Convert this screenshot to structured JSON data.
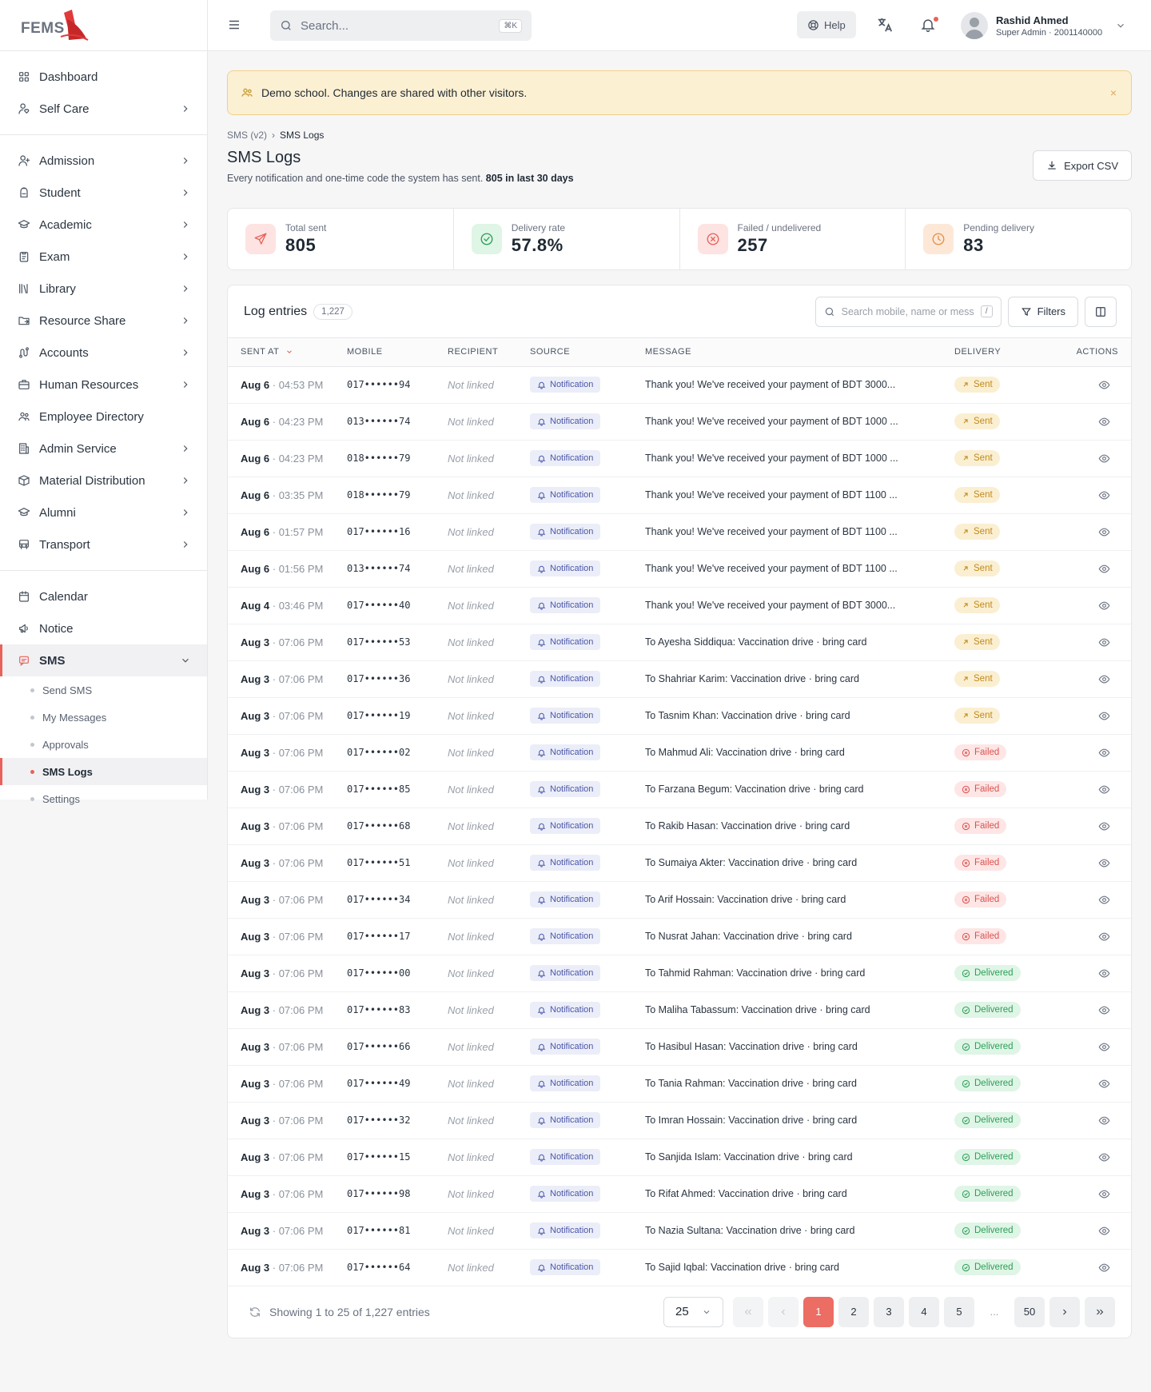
{
  "brand": {
    "logo_text": "FEMS"
  },
  "sidebar": {
    "group1": [
      {
        "label": "Dashboard",
        "icon": "grid-icon",
        "chevron": false
      },
      {
        "label": "Self Care",
        "icon": "user-heart-icon",
        "chevron": true
      }
    ],
    "group2": [
      {
        "label": "Admission",
        "icon": "user-plus-icon",
        "chevron": true
      },
      {
        "label": "Student",
        "icon": "backpack-icon",
        "chevron": true
      },
      {
        "label": "Academic",
        "icon": "graduation-cap-icon",
        "chevron": true
      },
      {
        "label": "Exam",
        "icon": "clipboard-icon",
        "chevron": true
      },
      {
        "label": "Library",
        "icon": "library-icon",
        "chevron": true
      },
      {
        "label": "Resource Share",
        "icon": "folder-share-icon",
        "chevron": true
      },
      {
        "label": "Accounts",
        "icon": "route-icon",
        "chevron": true
      },
      {
        "label": "Human Resources",
        "icon": "briefcase-icon",
        "chevron": true
      },
      {
        "label": "Employee Directory",
        "icon": "users-icon",
        "chevron": false
      },
      {
        "label": "Admin Service",
        "icon": "building-icon",
        "chevron": true
      },
      {
        "label": "Material Distribution",
        "icon": "box-icon",
        "chevron": true
      },
      {
        "label": "Alumni",
        "icon": "graduation-cap-icon",
        "chevron": true
      },
      {
        "label": "Transport",
        "icon": "bus-icon",
        "chevron": true
      }
    ],
    "group3": [
      {
        "label": "Calendar",
        "icon": "calendar-icon"
      },
      {
        "label": "Notice",
        "icon": "megaphone-icon"
      },
      {
        "label": "SMS",
        "icon": "message-icon"
      }
    ],
    "sms_sub": [
      {
        "label": "Send SMS"
      },
      {
        "label": "My Messages"
      },
      {
        "label": "Approvals"
      },
      {
        "label": "SMS Logs"
      },
      {
        "label": "Settings"
      }
    ]
  },
  "topbar": {
    "search_placeholder": "Search...",
    "search_kbd": "⌘K",
    "help_label": "Help",
    "user_name": "Rashid Ahmed",
    "user_role": "Super Admin · 2001140000"
  },
  "banner": {
    "text": "Demo school. Changes are shared with other visitors.",
    "close": "×"
  },
  "breadcrumb": {
    "parent": "SMS (v2)",
    "sep": "›",
    "current": "SMS Logs"
  },
  "page": {
    "title": "SMS Logs",
    "subtitle": "Every notification and one-time code the system has sent.",
    "subtitle_strong": "805 in last 30 days",
    "export_label": "Export CSV"
  },
  "stats": [
    {
      "label": "Total sent",
      "value": "805",
      "icon": "send-icon",
      "bg": "#fde3e1",
      "fg": "#e8625b"
    },
    {
      "label": "Delivery rate",
      "value": "57.8%",
      "icon": "check-circle-icon",
      "bg": "#dff5e6",
      "fg": "#2e9e58"
    },
    {
      "label": "Failed / undelivered",
      "value": "257",
      "icon": "x-circle-icon",
      "bg": "#fde3e1",
      "fg": "#e8625b"
    },
    {
      "label": "Pending delivery",
      "value": "83",
      "icon": "clock-icon",
      "bg": "#fde8d8",
      "fg": "#e3914a"
    }
  ],
  "log": {
    "title": "Log entries",
    "count": "1,227",
    "search_placeholder": "Search mobile, name or message",
    "search_kbd": "/",
    "filters_label": "Filters",
    "columns": [
      "SENT AT",
      "MOBILE",
      "RECIPIENT",
      "SOURCE",
      "MESSAGE",
      "DELIVERY",
      "ACTIONS"
    ],
    "rows": [
      {
        "date": "Aug 6",
        "time": "04:53 PM",
        "mobile": "017••••••94",
        "recipient": "Not linked",
        "source": "Notification",
        "message": "Thank you! We've received your payment of BDT 3000...",
        "status": "Sent"
      },
      {
        "date": "Aug 6",
        "time": "04:23 PM",
        "mobile": "013••••••74",
        "recipient": "Not linked",
        "source": "Notification",
        "message": "Thank you! We've received your payment of BDT 1000 ...",
        "status": "Sent"
      },
      {
        "date": "Aug 6",
        "time": "04:23 PM",
        "mobile": "018••••••79",
        "recipient": "Not linked",
        "source": "Notification",
        "message": "Thank you! We've received your payment of BDT 1000 ...",
        "status": "Sent"
      },
      {
        "date": "Aug 6",
        "time": "03:35 PM",
        "mobile": "018••••••79",
        "recipient": "Not linked",
        "source": "Notification",
        "message": "Thank you! We've received your payment of BDT 1100 ...",
        "status": "Sent"
      },
      {
        "date": "Aug 6",
        "time": "01:57 PM",
        "mobile": "017••••••16",
        "recipient": "Not linked",
        "source": "Notification",
        "message": "Thank you! We've received your payment of BDT 1100 ...",
        "status": "Sent"
      },
      {
        "date": "Aug 6",
        "time": "01:56 PM",
        "mobile": "013••••••74",
        "recipient": "Not linked",
        "source": "Notification",
        "message": "Thank you! We've received your payment of BDT 1100 ...",
        "status": "Sent"
      },
      {
        "date": "Aug 4",
        "time": "03:46 PM",
        "mobile": "017••••••40",
        "recipient": "Not linked",
        "source": "Notification",
        "message": "Thank you! We've received your payment of BDT 3000...",
        "status": "Sent"
      },
      {
        "date": "Aug 3",
        "time": "07:06 PM",
        "mobile": "017••••••53",
        "recipient": "Not linked",
        "source": "Notification",
        "message": "To Ayesha Siddiqua: Vaccination drive · bring card",
        "status": "Sent"
      },
      {
        "date": "Aug 3",
        "time": "07:06 PM",
        "mobile": "017••••••36",
        "recipient": "Not linked",
        "source": "Notification",
        "message": "To Shahriar Karim: Vaccination drive · bring card",
        "status": "Sent"
      },
      {
        "date": "Aug 3",
        "time": "07:06 PM",
        "mobile": "017••••••19",
        "recipient": "Not linked",
        "source": "Notification",
        "message": "To Tasnim Khan: Vaccination drive · bring card",
        "status": "Sent"
      },
      {
        "date": "Aug 3",
        "time": "07:06 PM",
        "mobile": "017••••••02",
        "recipient": "Not linked",
        "source": "Notification",
        "message": "To Mahmud Ali: Vaccination drive · bring card",
        "status": "Failed"
      },
      {
        "date": "Aug 3",
        "time": "07:06 PM",
        "mobile": "017••••••85",
        "recipient": "Not linked",
        "source": "Notification",
        "message": "To Farzana Begum: Vaccination drive · bring card",
        "status": "Failed"
      },
      {
        "date": "Aug 3",
        "time": "07:06 PM",
        "mobile": "017••••••68",
        "recipient": "Not linked",
        "source": "Notification",
        "message": "To Rakib Hasan: Vaccination drive · bring card",
        "status": "Failed"
      },
      {
        "date": "Aug 3",
        "time": "07:06 PM",
        "mobile": "017••••••51",
        "recipient": "Not linked",
        "source": "Notification",
        "message": "To Sumaiya Akter: Vaccination drive · bring card",
        "status": "Failed"
      },
      {
        "date": "Aug 3",
        "time": "07:06 PM",
        "mobile": "017••••••34",
        "recipient": "Not linked",
        "source": "Notification",
        "message": "To Arif Hossain: Vaccination drive · bring card",
        "status": "Failed"
      },
      {
        "date": "Aug 3",
        "time": "07:06 PM",
        "mobile": "017••••••17",
        "recipient": "Not linked",
        "source": "Notification",
        "message": "To Nusrat Jahan: Vaccination drive · bring card",
        "status": "Failed"
      },
      {
        "date": "Aug 3",
        "time": "07:06 PM",
        "mobile": "017••••••00",
        "recipient": "Not linked",
        "source": "Notification",
        "message": "To Tahmid Rahman: Vaccination drive · bring card",
        "status": "Delivered"
      },
      {
        "date": "Aug 3",
        "time": "07:06 PM",
        "mobile": "017••••••83",
        "recipient": "Not linked",
        "source": "Notification",
        "message": "To Maliha Tabassum: Vaccination drive · bring card",
        "status": "Delivered"
      },
      {
        "date": "Aug 3",
        "time": "07:06 PM",
        "mobile": "017••••••66",
        "recipient": "Not linked",
        "source": "Notification",
        "message": "To Hasibul Hasan: Vaccination drive · bring card",
        "status": "Delivered"
      },
      {
        "date": "Aug 3",
        "time": "07:06 PM",
        "mobile": "017••••••49",
        "recipient": "Not linked",
        "source": "Notification",
        "message": "To Tania Rahman: Vaccination drive · bring card",
        "status": "Delivered"
      },
      {
        "date": "Aug 3",
        "time": "07:06 PM",
        "mobile": "017••••••32",
        "recipient": "Not linked",
        "source": "Notification",
        "message": "To Imran Hossain: Vaccination drive · bring card",
        "status": "Delivered"
      },
      {
        "date": "Aug 3",
        "time": "07:06 PM",
        "mobile": "017••••••15",
        "recipient": "Not linked",
        "source": "Notification",
        "message": "To Sanjida Islam: Vaccination drive · bring card",
        "status": "Delivered"
      },
      {
        "date": "Aug 3",
        "time": "07:06 PM",
        "mobile": "017••••••98",
        "recipient": "Not linked",
        "source": "Notification",
        "message": "To Rifat Ahmed: Vaccination drive · bring card",
        "status": "Delivered"
      },
      {
        "date": "Aug 3",
        "time": "07:06 PM",
        "mobile": "017••••••81",
        "recipient": "Not linked",
        "source": "Notification",
        "message": "To Nazia Sultana: Vaccination drive · bring card",
        "status": "Delivered"
      },
      {
        "date": "Aug 3",
        "time": "07:06 PM",
        "mobile": "017••••••64",
        "recipient": "Not linked",
        "source": "Notification",
        "message": "To Sajid Iqbal: Vaccination drive · bring card",
        "status": "Delivered"
      }
    ]
  },
  "pagination": {
    "info": "Showing 1 to 25 of 1,227 entries",
    "page_size": "25",
    "pages": [
      "1",
      "2",
      "3",
      "4",
      "5"
    ],
    "ellipsis": "...",
    "last": "50"
  }
}
